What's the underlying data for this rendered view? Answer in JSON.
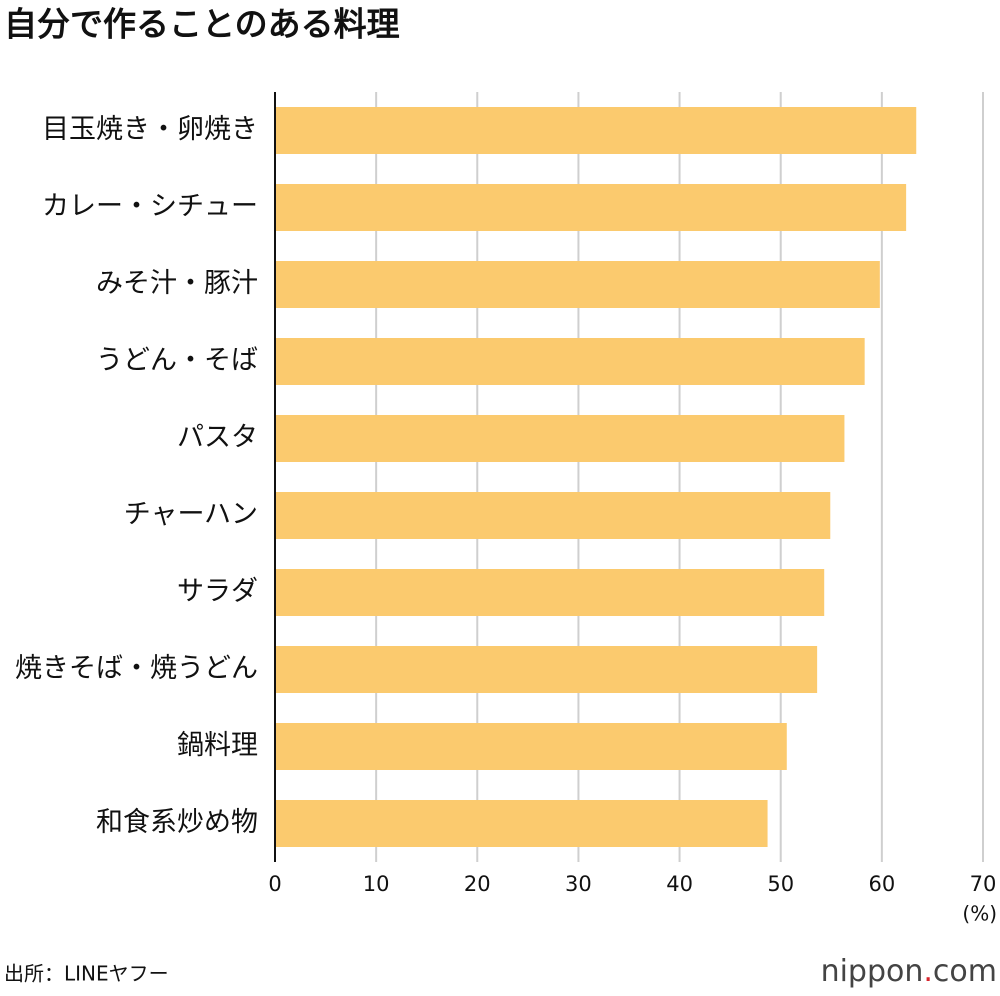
{
  "chart_data": {
    "type": "bar",
    "orientation": "horizontal",
    "title": "自分で作ることのある料理",
    "categories": [
      "目玉焼き・卵焼き",
      "カレー・シチュー",
      "みそ汁・豚汁",
      "うどん・そば",
      "パスタ",
      "チャーハン",
      "サラダ",
      "焼きそば・焼うどん",
      "鍋料理",
      "和食系炒め物"
    ],
    "values": [
      63.4,
      62.4,
      59.8,
      58.3,
      56.3,
      54.9,
      54.3,
      53.6,
      50.6,
      48.7
    ],
    "color": "#fbca6e",
    "xlim": [
      0,
      70
    ],
    "xticks": [
      0,
      10,
      20,
      30,
      40,
      50,
      60,
      70
    ],
    "x_unit": "(%)",
    "grid": true,
    "source": "出所：LINEヤフー",
    "logo": [
      "nippon",
      ".",
      "com"
    ]
  }
}
